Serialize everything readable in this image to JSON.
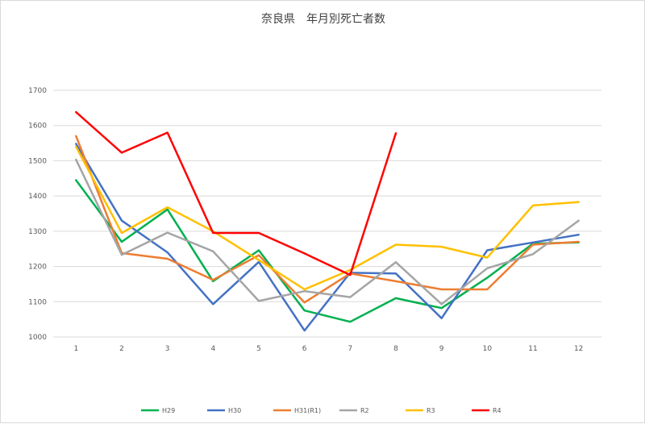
{
  "chart_data": {
    "type": "line",
    "title": "奈良県　年月別死亡者数",
    "xlabel": "",
    "ylabel": "",
    "categories": [
      "1",
      "2",
      "3",
      "4",
      "5",
      "6",
      "7",
      "8",
      "9",
      "10",
      "11",
      "12"
    ],
    "ylim": [
      1000,
      1700
    ],
    "yticks": [
      1000,
      1100,
      1200,
      1300,
      1400,
      1500,
      1600,
      1700
    ],
    "grid": true,
    "legend_position": "bottom",
    "series": [
      {
        "name": "H29",
        "color": "#00b050",
        "values": [
          1445,
          1270,
          1362,
          1158,
          1246,
          1075,
          1043,
          1110,
          1082,
          1168,
          1265,
          1268
        ]
      },
      {
        "name": "H30",
        "color": "#4472c4",
        "values": [
          1548,
          1330,
          1240,
          1093,
          1213,
          1018,
          1182,
          1180,
          1053,
          1246,
          1268,
          1290
        ]
      },
      {
        "name": "H31(R1)",
        "color": "#ed7d31",
        "values": [
          1570,
          1238,
          1222,
          1162,
          1232,
          1098,
          1180,
          1158,
          1135,
          1135,
          1262,
          1270
        ]
      },
      {
        "name": "R2",
        "color": "#a5a5a5",
        "values": [
          1503,
          1233,
          1296,
          1243,
          1102,
          1130,
          1113,
          1212,
          1093,
          1195,
          1235,
          1330
        ]
      },
      {
        "name": "R3",
        "color": "#ffc000",
        "values": [
          1540,
          1295,
          1368,
          1300,
          1218,
          1135,
          1190,
          1262,
          1256,
          1225,
          1373,
          1383
        ]
      },
      {
        "name": "R4",
        "color": "#ff0000",
        "values": [
          1638,
          1523,
          1580,
          1295,
          1295,
          1237,
          1176,
          1578,
          null,
          null,
          null,
          null
        ]
      }
    ]
  }
}
